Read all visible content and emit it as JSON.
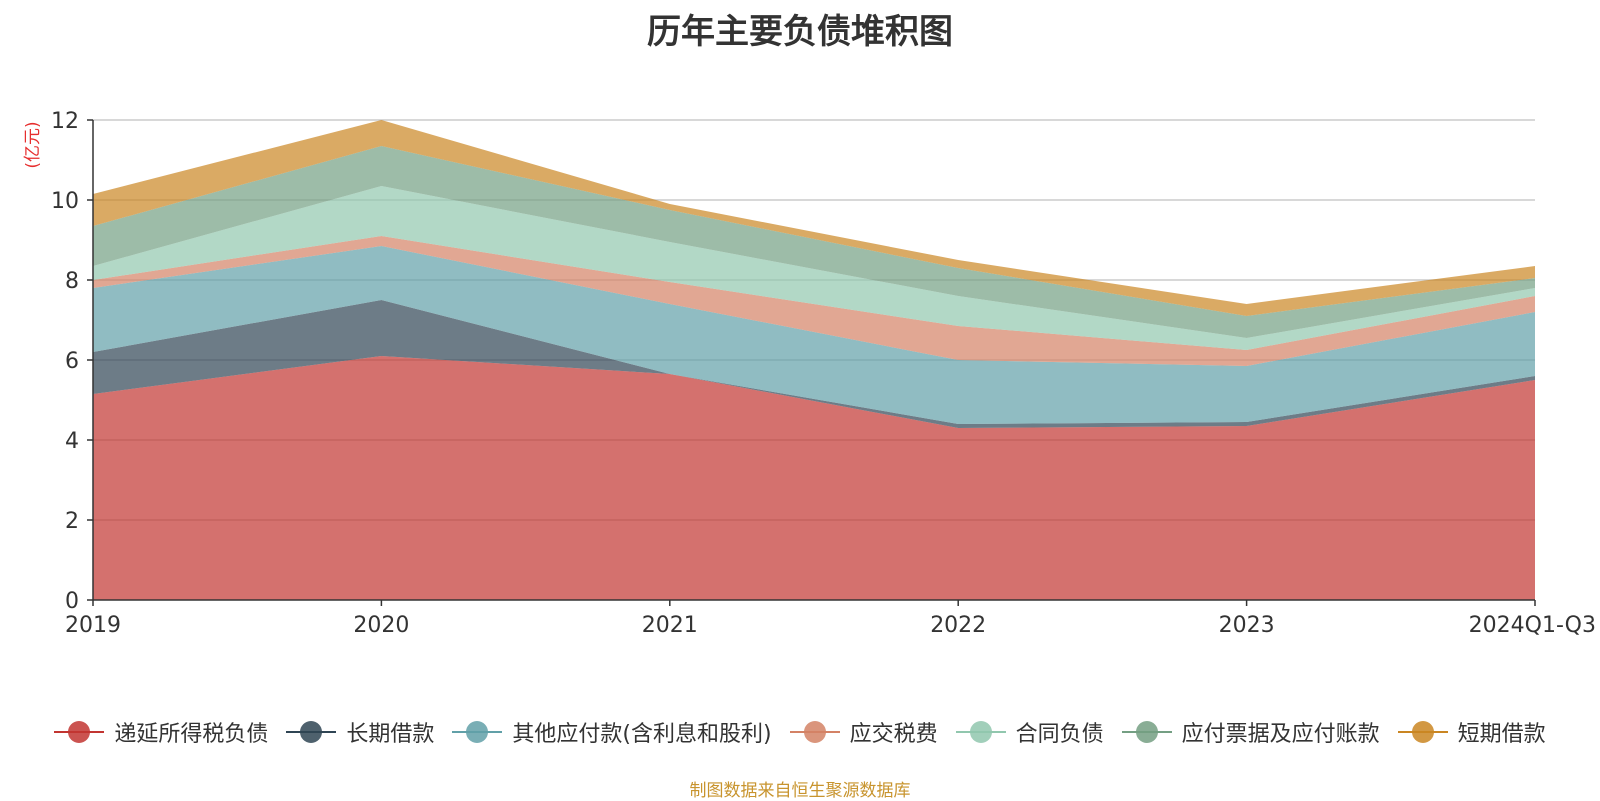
{
  "chart_data": {
    "type": "area",
    "stacked": true,
    "title": "历年主要负债堆积图",
    "ylabel": "(亿元)",
    "xlabel": "",
    "ylim": [
      0,
      12
    ],
    "yticks": [
      0,
      2,
      4,
      6,
      8,
      10,
      12
    ],
    "categories": [
      "2019",
      "2020",
      "2021",
      "2022",
      "2023",
      "2024Q1-Q3"
    ],
    "grid": true,
    "legend_position": "bottom",
    "series": [
      {
        "name": "递延所得税负债",
        "color": "#c23531",
        "values": [
          5.15,
          6.1,
          5.65,
          4.3,
          4.35,
          5.5
        ]
      },
      {
        "name": "长期借款",
        "color": "#2f4554",
        "values": [
          1.05,
          1.4,
          0.0,
          0.1,
          0.1,
          0.1
        ]
      },
      {
        "name": "其他应付款(含利息和股利)",
        "color": "#61a0a8",
        "values": [
          1.6,
          1.35,
          1.75,
          1.6,
          1.4,
          1.6
        ]
      },
      {
        "name": "应交税费",
        "color": "#d48265",
        "values": [
          0.2,
          0.25,
          0.55,
          0.85,
          0.4,
          0.4
        ]
      },
      {
        "name": "合同负债",
        "color": "#91c7ae",
        "values": [
          0.35,
          1.25,
          1.0,
          0.75,
          0.3,
          0.2
        ]
      },
      {
        "name": "应付票据及应付账款",
        "color": "#749f83",
        "values": [
          1.0,
          1.0,
          0.8,
          0.7,
          0.55,
          0.25
        ]
      },
      {
        "name": "短期借款",
        "color": "#ca8622",
        "values": [
          0.8,
          0.65,
          0.15,
          0.2,
          0.3,
          0.3
        ]
      }
    ]
  },
  "source_note": "制图数据来自恒生聚源数据库"
}
